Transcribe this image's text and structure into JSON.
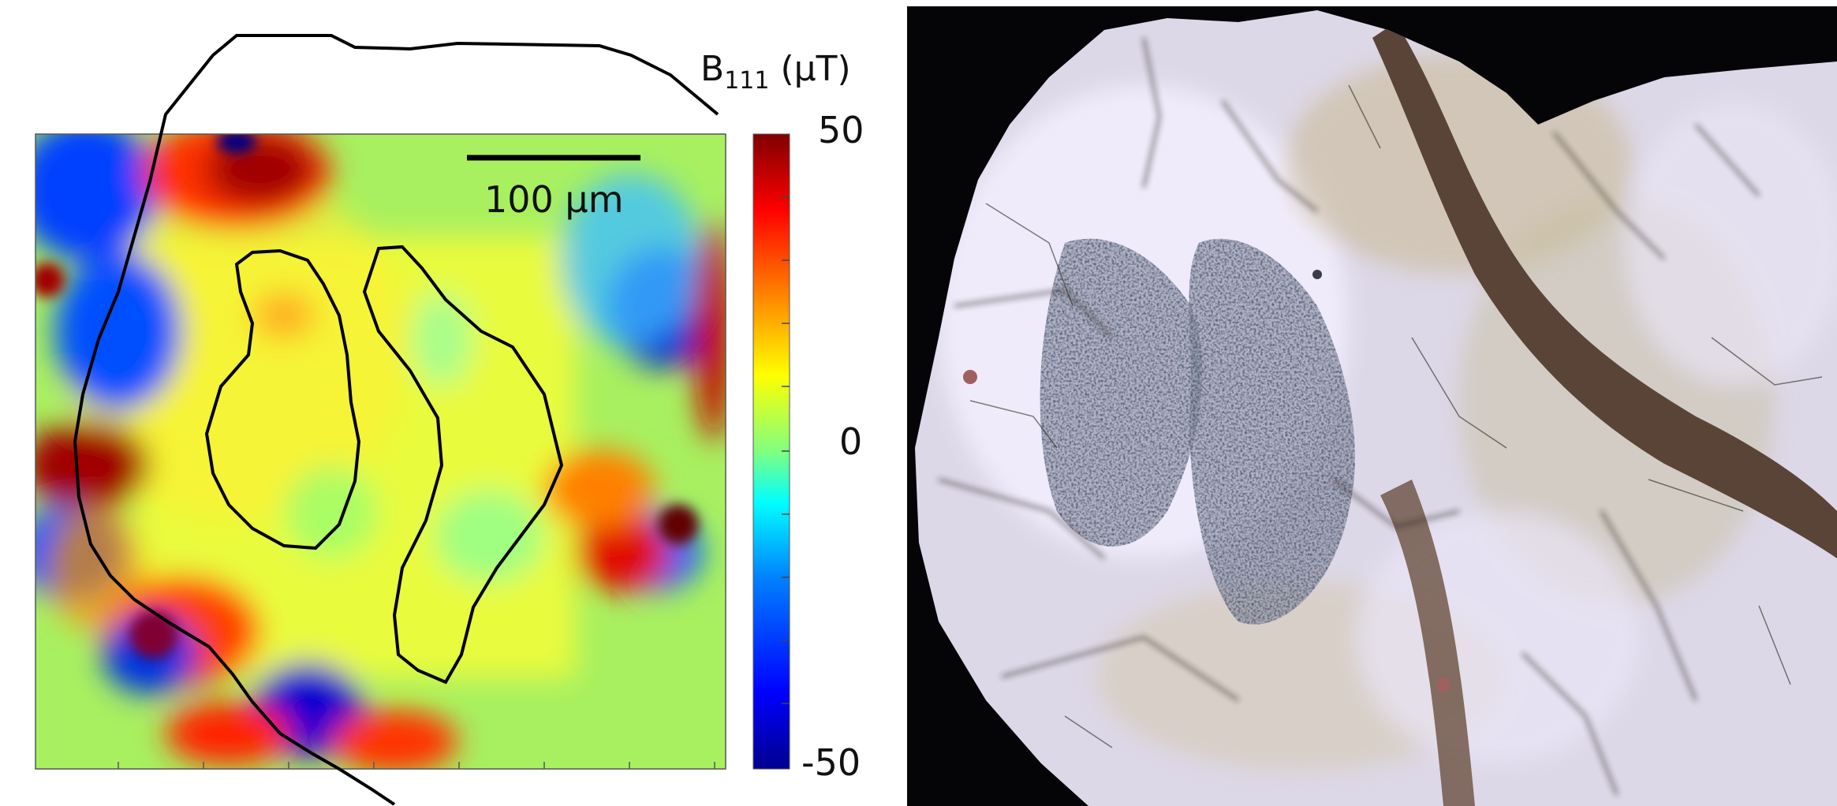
{
  "figure": {
    "left_panel": {
      "colorbar": {
        "label": "B",
        "subscript": "111",
        "unit": "(μT)",
        "ticks": [
          "50",
          "0",
          "-50"
        ],
        "colormap": [
          "#00008f",
          "#0000ff",
          "#0080ff",
          "#00ffff",
          "#80ff80",
          "#ffff00",
          "#ff8000",
          "#ff0000",
          "#800000"
        ]
      },
      "scale_bar": {
        "label": "100 μm"
      }
    },
    "right_panel": {
      "description_icon": "photomicrograph"
    }
  }
}
